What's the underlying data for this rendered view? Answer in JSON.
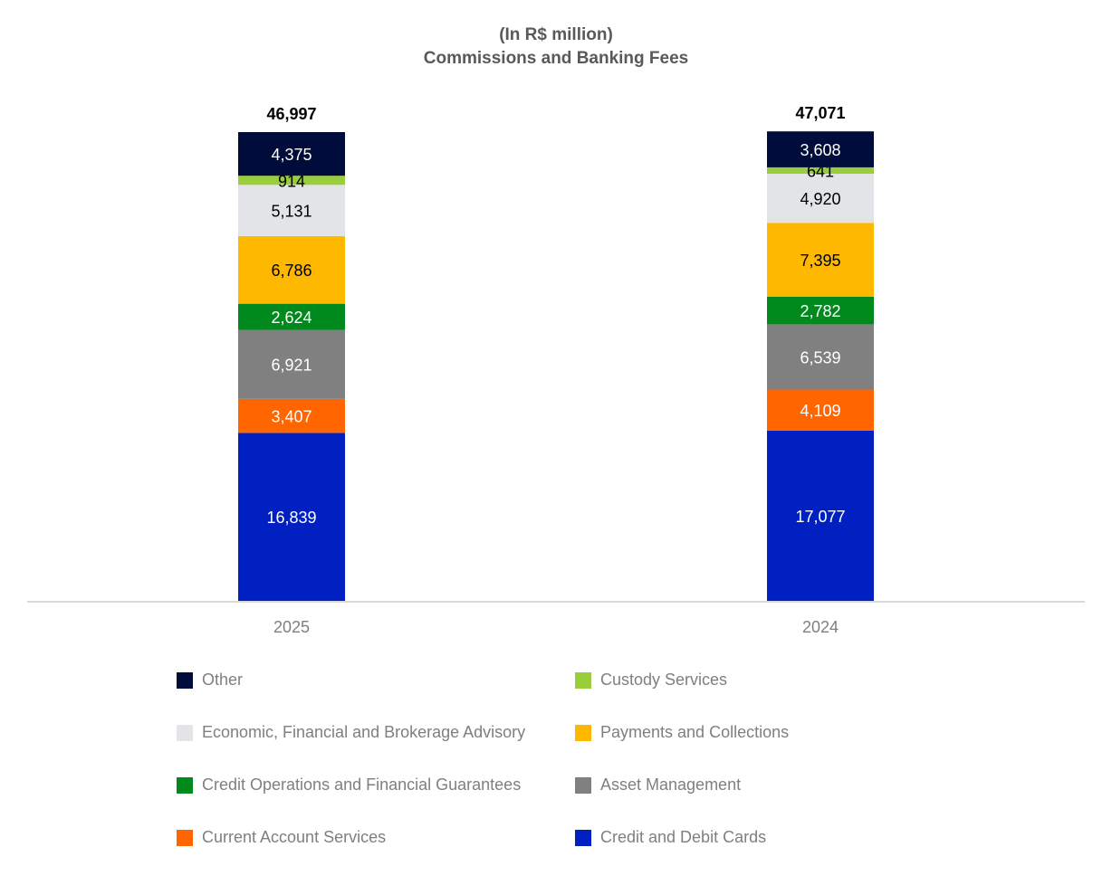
{
  "title": {
    "line1": "(In R$ million)",
    "line2": "Commissions and Banking Fees"
  },
  "chart_data": {
    "type": "bar",
    "stacked": true,
    "categories": [
      "2025",
      "2024"
    ],
    "totals": [
      "46,997",
      "47,071"
    ],
    "series": [
      {
        "name": "Credit and Debit Cards",
        "color": "#0020C2",
        "label_color": "#ffffff",
        "values": [
          16839,
          17077
        ],
        "labels": [
          "16,839",
          "17,077"
        ]
      },
      {
        "name": "Current Account Services",
        "color": "#FF6600",
        "label_color": "#ffffff",
        "values": [
          3407,
          4109
        ],
        "labels": [
          "3,407",
          "4,109"
        ]
      },
      {
        "name": "Asset Management",
        "color": "#808080",
        "label_color": "#ffffff",
        "values": [
          6921,
          6539
        ],
        "labels": [
          "6,921",
          "6,539"
        ]
      },
      {
        "name": "Credit Operations and Financial Guarantees",
        "color": "#008A1E",
        "label_color": "#ffffff",
        "values": [
          2624,
          2782
        ],
        "labels": [
          "2,624",
          "2,782"
        ]
      },
      {
        "name": "Payments and Collections",
        "color": "#FFB800",
        "label_color": "#000000",
        "values": [
          6786,
          7395
        ],
        "labels": [
          "6,786",
          "7,395"
        ]
      },
      {
        "name": "Economic, Financial and Brokerage Advisory",
        "color": "#E3E4E8",
        "label_color": "#000000",
        "values": [
          5131,
          4920
        ],
        "labels": [
          "5,131",
          "4,920"
        ]
      },
      {
        "name": "Custody Services",
        "color": "#9ACD3C",
        "label_color": "#000000",
        "values": [
          914,
          641
        ],
        "labels": [
          "914",
          "641"
        ]
      },
      {
        "name": "Other",
        "color": "#000C3A",
        "label_color": "#ffffff",
        "values": [
          4375,
          3608
        ],
        "labels": [
          "4,375",
          "3,608"
        ]
      }
    ],
    "legend_order": [
      "Other",
      "Custody Services",
      "Economic, Financial and Brokerage Advisory",
      "Payments and Collections",
      "Credit Operations and Financial Guarantees",
      "Asset Management",
      "Current Account Services",
      "Credit and Debit Cards"
    ],
    "legend_position": "bottom",
    "grid": false
  }
}
